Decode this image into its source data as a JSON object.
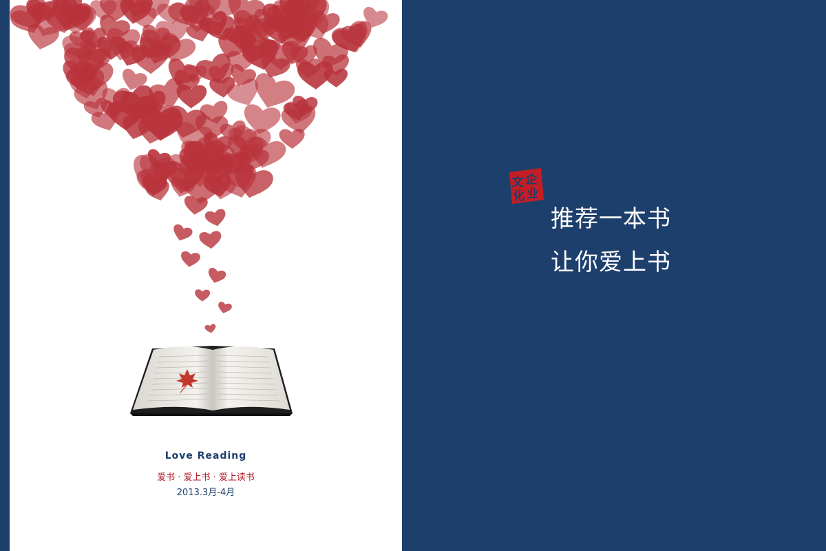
{
  "colors": {
    "navy": "#1d3f6c",
    "heart_red": "#b8333b",
    "page_white": "#ffffff",
    "seal_red": "#c41d25"
  },
  "left_page": {
    "illustration": "red fingerprint hearts rising from an open book with a maple leaf",
    "caption_title": "Love Reading",
    "caption_tagline": "爱书 · 爱上书 · 爱上读书",
    "caption_date": "2013.3月-4月"
  },
  "right_page": {
    "seal_text": [
      "文",
      "企",
      "化",
      "业"
    ],
    "slogan_line1": "推荐一本书",
    "slogan_line2": "让你爱上书"
  }
}
